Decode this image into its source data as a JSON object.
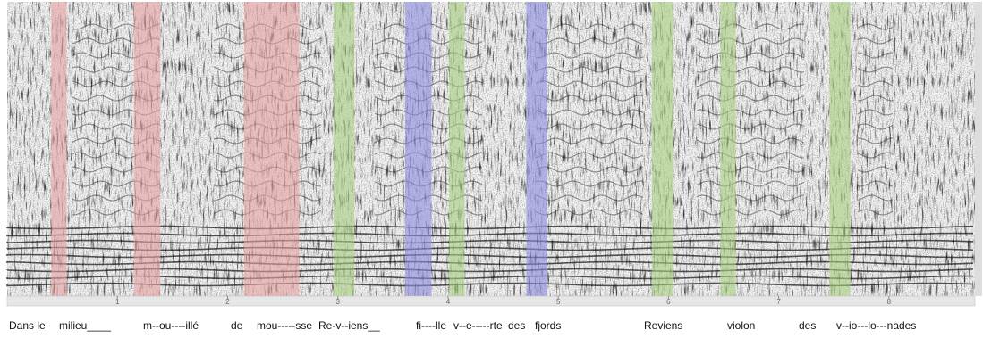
{
  "spectrogram": {
    "time_axis": {
      "xlim": [
        0,
        8.78
      ],
      "xticks": [
        1,
        2,
        3,
        4,
        5,
        6,
        7,
        8
      ]
    },
    "bands": [
      {
        "start": 0.4,
        "end": 0.54,
        "color": "#e8a0a0"
      },
      {
        "start": 1.15,
        "end": 1.39,
        "color": "#e8a0a0"
      },
      {
        "start": 2.15,
        "end": 2.65,
        "color": "#e8a0a0"
      },
      {
        "start": 2.96,
        "end": 3.15,
        "color": "#a8d080"
      },
      {
        "start": 3.61,
        "end": 3.85,
        "color": "#8c8ce0"
      },
      {
        "start": 4.01,
        "end": 4.15,
        "color": "#a8d080"
      },
      {
        "start": 4.71,
        "end": 4.9,
        "color": "#8c8ce0"
      },
      {
        "start": 5.85,
        "end": 6.04,
        "color": "#a8d080"
      },
      {
        "start": 6.47,
        "end": 6.61,
        "color": "#a8d080"
      },
      {
        "start": 7.46,
        "end": 7.65,
        "color": "#a8d080"
      }
    ]
  },
  "lyrics": [
    "Dans le",
    "milieu____",
    "m--ou----illé",
    "de",
    "mou-----sse",
    "Re-v--iens__",
    "fi----lle",
    "v--e-----rte",
    "des",
    "fjords",
    "Reviens",
    "violon",
    "des",
    "v--io---lo---nades"
  ]
}
